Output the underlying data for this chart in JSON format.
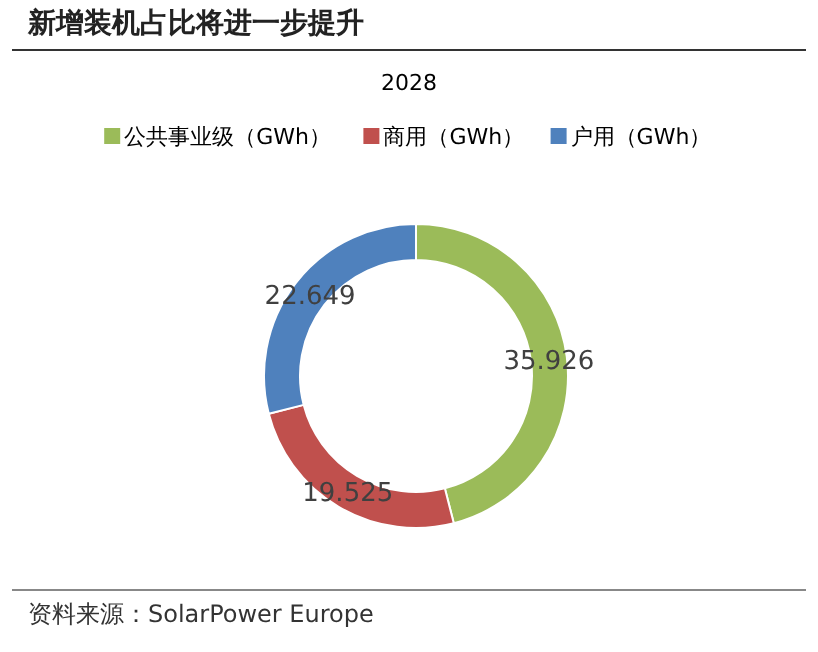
{
  "chart_data": {
    "type": "donut",
    "title": "新增装机占比将进一步提升",
    "subtitle": "2028",
    "categories": [
      "公共事业级（GWh）",
      "商用（GWh）",
      "户用（GWh）"
    ],
    "values": [
      35.926,
      19.525,
      22.649
    ],
    "colors": [
      "#9bbb59",
      "#c0504d",
      "#4f81bd"
    ],
    "data_labels": true,
    "legend": "top",
    "annotations": [
      "资料来源：SolarPower Europe"
    ]
  }
}
